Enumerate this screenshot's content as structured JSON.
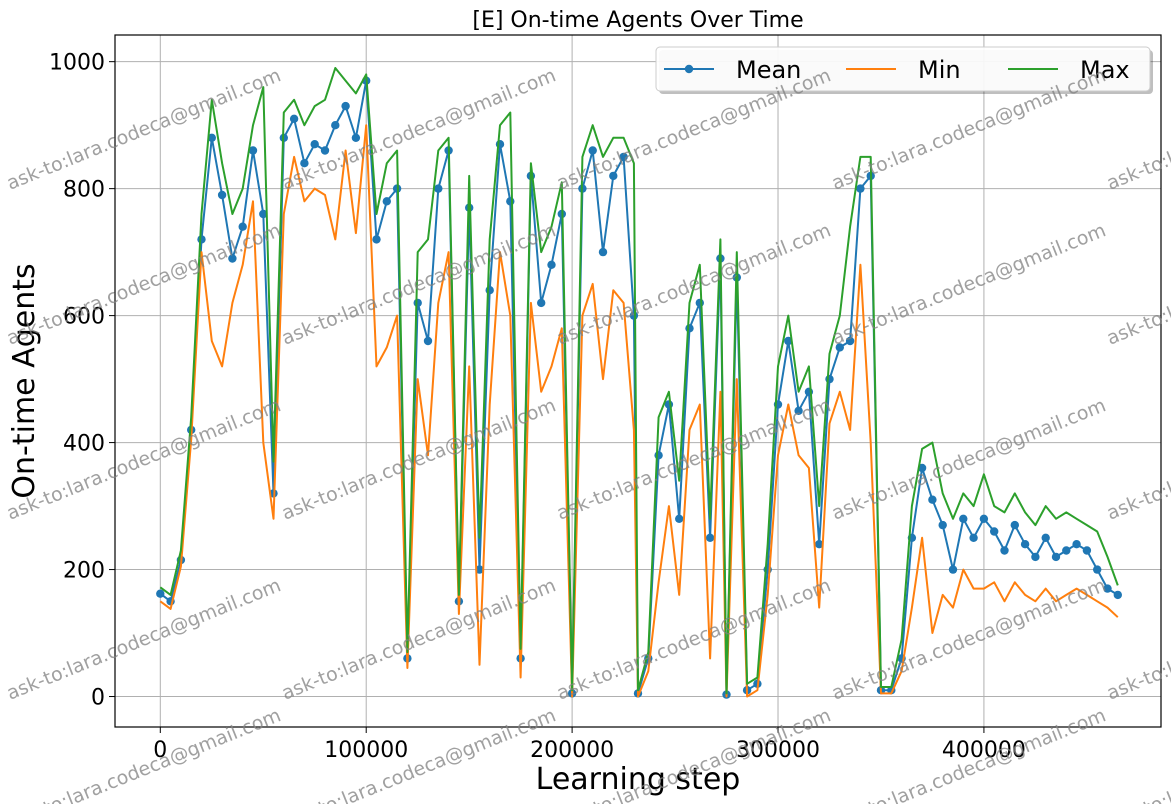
{
  "chart_data": {
    "type": "line",
    "title": "[E] On-time Agents Over Time",
    "xlabel": "Learning step",
    "ylabel": "On-time Agents",
    "xlim": [
      -22000,
      486000
    ],
    "ylim": [
      -48,
      1042
    ],
    "xticks": [
      0,
      100000,
      200000,
      300000,
      400000
    ],
    "xtick_labels": [
      "0",
      "100000",
      "200000",
      "300000",
      "400000"
    ],
    "yticks": [
      0,
      200,
      400,
      600,
      800,
      1000
    ],
    "ytick_labels": [
      "0",
      "200",
      "400",
      "600",
      "800",
      "1000"
    ],
    "grid": true,
    "legend": {
      "position": "top-right",
      "columns": 3
    },
    "series": [
      {
        "name": "Mean",
        "color": "#1f77b4",
        "marker": "circle",
        "points": [
          [
            0,
            162
          ],
          [
            5000,
            150
          ],
          [
            10000,
            215
          ],
          [
            15000,
            420
          ],
          [
            20000,
            720
          ],
          [
            25000,
            880
          ],
          [
            30000,
            790
          ],
          [
            35000,
            690
          ],
          [
            40000,
            740
          ],
          [
            45000,
            860
          ],
          [
            50000,
            760
          ],
          [
            55000,
            320
          ],
          [
            60000,
            880
          ],
          [
            65000,
            910
          ],
          [
            70000,
            840
          ],
          [
            75000,
            870
          ],
          [
            80000,
            860
          ],
          [
            85000,
            900
          ],
          [
            90000,
            930
          ],
          [
            95000,
            880
          ],
          [
            100000,
            970
          ],
          [
            105000,
            720
          ],
          [
            110000,
            780
          ],
          [
            115000,
            800
          ],
          [
            120000,
            60
          ],
          [
            125000,
            620
          ],
          [
            130000,
            560
          ],
          [
            135000,
            800
          ],
          [
            140000,
            860
          ],
          [
            145000,
            150
          ],
          [
            150000,
            770
          ],
          [
            155000,
            200
          ],
          [
            160000,
            640
          ],
          [
            165000,
            870
          ],
          [
            170000,
            780
          ],
          [
            175000,
            60
          ],
          [
            180000,
            820
          ],
          [
            185000,
            620
          ],
          [
            190000,
            680
          ],
          [
            195000,
            760
          ],
          [
            200000,
            5
          ],
          [
            205000,
            800
          ],
          [
            210000,
            860
          ],
          [
            215000,
            700
          ],
          [
            220000,
            820
          ],
          [
            225000,
            850
          ],
          [
            230000,
            600
          ],
          [
            232000,
            5
          ],
          [
            237000,
            60
          ],
          [
            242000,
            380
          ],
          [
            247000,
            460
          ],
          [
            252000,
            280
          ],
          [
            257000,
            580
          ],
          [
            262000,
            620
          ],
          [
            267000,
            250
          ],
          [
            272000,
            690
          ],
          [
            275000,
            3
          ],
          [
            280000,
            660
          ],
          [
            285000,
            10
          ],
          [
            290000,
            20
          ],
          [
            295000,
            200
          ],
          [
            300000,
            460
          ],
          [
            305000,
            560
          ],
          [
            310000,
            450
          ],
          [
            315000,
            480
          ],
          [
            320000,
            240
          ],
          [
            325000,
            500
          ],
          [
            330000,
            550
          ],
          [
            335000,
            560
          ],
          [
            340000,
            800
          ],
          [
            345000,
            820
          ],
          [
            350000,
            10
          ],
          [
            355000,
            10
          ],
          [
            360000,
            60
          ],
          [
            365000,
            250
          ],
          [
            370000,
            360
          ],
          [
            375000,
            310
          ],
          [
            380000,
            270
          ],
          [
            385000,
            200
          ],
          [
            390000,
            280
          ],
          [
            395000,
            250
          ],
          [
            400000,
            280
          ],
          [
            405000,
            260
          ],
          [
            410000,
            230
          ],
          [
            415000,
            270
          ],
          [
            420000,
            240
          ],
          [
            425000,
            220
          ],
          [
            430000,
            250
          ],
          [
            435000,
            220
          ],
          [
            440000,
            230
          ],
          [
            445000,
            240
          ],
          [
            450000,
            230
          ],
          [
            455000,
            200
          ],
          [
            460000,
            170
          ],
          [
            465000,
            160
          ]
        ]
      },
      {
        "name": "Min",
        "color": "#ff7f0e",
        "marker": "none",
        "points": [
          [
            0,
            150
          ],
          [
            5000,
            138
          ],
          [
            10000,
            205
          ],
          [
            15000,
            405
          ],
          [
            20000,
            700
          ],
          [
            25000,
            560
          ],
          [
            30000,
            520
          ],
          [
            35000,
            620
          ],
          [
            40000,
            680
          ],
          [
            45000,
            780
          ],
          [
            50000,
            400
          ],
          [
            55000,
            280
          ],
          [
            60000,
            760
          ],
          [
            65000,
            850
          ],
          [
            70000,
            780
          ],
          [
            75000,
            800
          ],
          [
            80000,
            790
          ],
          [
            85000,
            720
          ],
          [
            90000,
            860
          ],
          [
            95000,
            730
          ],
          [
            100000,
            900
          ],
          [
            105000,
            520
          ],
          [
            110000,
            550
          ],
          [
            115000,
            600
          ],
          [
            120000,
            45
          ],
          [
            125000,
            500
          ],
          [
            130000,
            380
          ],
          [
            135000,
            620
          ],
          [
            140000,
            700
          ],
          [
            145000,
            130
          ],
          [
            150000,
            520
          ],
          [
            155000,
            50
          ],
          [
            160000,
            460
          ],
          [
            165000,
            700
          ],
          [
            170000,
            600
          ],
          [
            175000,
            30
          ],
          [
            180000,
            620
          ],
          [
            185000,
            480
          ],
          [
            190000,
            520
          ],
          [
            195000,
            580
          ],
          [
            200000,
            0
          ],
          [
            205000,
            600
          ],
          [
            210000,
            650
          ],
          [
            215000,
            500
          ],
          [
            220000,
            640
          ],
          [
            225000,
            620
          ],
          [
            230000,
            420
          ],
          [
            232000,
            0
          ],
          [
            237000,
            40
          ],
          [
            242000,
            180
          ],
          [
            247000,
            300
          ],
          [
            252000,
            160
          ],
          [
            257000,
            420
          ],
          [
            262000,
            460
          ],
          [
            267000,
            60
          ],
          [
            272000,
            480
          ],
          [
            275000,
            0
          ],
          [
            280000,
            500
          ],
          [
            285000,
            0
          ],
          [
            290000,
            10
          ],
          [
            295000,
            160
          ],
          [
            300000,
            380
          ],
          [
            305000,
            460
          ],
          [
            310000,
            380
          ],
          [
            315000,
            360
          ],
          [
            320000,
            140
          ],
          [
            325000,
            430
          ],
          [
            330000,
            480
          ],
          [
            335000,
            420
          ],
          [
            340000,
            680
          ],
          [
            345000,
            400
          ],
          [
            350000,
            5
          ],
          [
            355000,
            5
          ],
          [
            360000,
            40
          ],
          [
            365000,
            140
          ],
          [
            370000,
            250
          ],
          [
            375000,
            100
          ],
          [
            380000,
            160
          ],
          [
            385000,
            140
          ],
          [
            390000,
            200
          ],
          [
            395000,
            170
          ],
          [
            400000,
            170
          ],
          [
            405000,
            180
          ],
          [
            410000,
            150
          ],
          [
            415000,
            180
          ],
          [
            420000,
            160
          ],
          [
            425000,
            150
          ],
          [
            430000,
            170
          ],
          [
            435000,
            150
          ],
          [
            440000,
            160
          ],
          [
            445000,
            170
          ],
          [
            450000,
            160
          ],
          [
            455000,
            150
          ],
          [
            460000,
            140
          ],
          [
            465000,
            125
          ]
        ]
      },
      {
        "name": "Max",
        "color": "#2ca02c",
        "marker": "none",
        "points": [
          [
            0,
            172
          ],
          [
            5000,
            160
          ],
          [
            10000,
            230
          ],
          [
            15000,
            440
          ],
          [
            20000,
            760
          ],
          [
            25000,
            940
          ],
          [
            30000,
            840
          ],
          [
            35000,
            760
          ],
          [
            40000,
            800
          ],
          [
            45000,
            900
          ],
          [
            50000,
            960
          ],
          [
            55000,
            370
          ],
          [
            60000,
            920
          ],
          [
            65000,
            940
          ],
          [
            70000,
            900
          ],
          [
            75000,
            930
          ],
          [
            80000,
            940
          ],
          [
            85000,
            990
          ],
          [
            90000,
            970
          ],
          [
            95000,
            950
          ],
          [
            100000,
            980
          ],
          [
            105000,
            760
          ],
          [
            110000,
            840
          ],
          [
            115000,
            860
          ],
          [
            120000,
            70
          ],
          [
            125000,
            700
          ],
          [
            130000,
            720
          ],
          [
            135000,
            860
          ],
          [
            140000,
            880
          ],
          [
            145000,
            160
          ],
          [
            150000,
            820
          ],
          [
            155000,
            250
          ],
          [
            160000,
            720
          ],
          [
            165000,
            900
          ],
          [
            170000,
            920
          ],
          [
            175000,
            75
          ],
          [
            180000,
            840
          ],
          [
            185000,
            700
          ],
          [
            190000,
            740
          ],
          [
            195000,
            810
          ],
          [
            200000,
            10
          ],
          [
            205000,
            850
          ],
          [
            210000,
            900
          ],
          [
            215000,
            850
          ],
          [
            220000,
            880
          ],
          [
            225000,
            880
          ],
          [
            230000,
            840
          ],
          [
            232000,
            10
          ],
          [
            237000,
            70
          ],
          [
            242000,
            440
          ],
          [
            247000,
            480
          ],
          [
            252000,
            340
          ],
          [
            257000,
            620
          ],
          [
            262000,
            680
          ],
          [
            267000,
            280
          ],
          [
            272000,
            720
          ],
          [
            275000,
            5
          ],
          [
            280000,
            700
          ],
          [
            285000,
            20
          ],
          [
            290000,
            30
          ],
          [
            295000,
            240
          ],
          [
            300000,
            520
          ],
          [
            305000,
            600
          ],
          [
            310000,
            480
          ],
          [
            315000,
            520
          ],
          [
            320000,
            300
          ],
          [
            325000,
            540
          ],
          [
            330000,
            600
          ],
          [
            335000,
            740
          ],
          [
            340000,
            850
          ],
          [
            345000,
            850
          ],
          [
            350000,
            15
          ],
          [
            355000,
            15
          ],
          [
            360000,
            90
          ],
          [
            365000,
            300
          ],
          [
            370000,
            390
          ],
          [
            375000,
            400
          ],
          [
            380000,
            320
          ],
          [
            385000,
            280
          ],
          [
            390000,
            320
          ],
          [
            395000,
            300
          ],
          [
            400000,
            350
          ],
          [
            405000,
            300
          ],
          [
            410000,
            290
          ],
          [
            415000,
            320
          ],
          [
            420000,
            290
          ],
          [
            425000,
            270
          ],
          [
            430000,
            300
          ],
          [
            435000,
            280
          ],
          [
            440000,
            290
          ],
          [
            445000,
            280
          ],
          [
            450000,
            270
          ],
          [
            455000,
            260
          ],
          [
            460000,
            220
          ],
          [
            465000,
            175
          ]
        ]
      }
    ]
  },
  "watermark": "ask-to:lara.codeca@gmail.com"
}
